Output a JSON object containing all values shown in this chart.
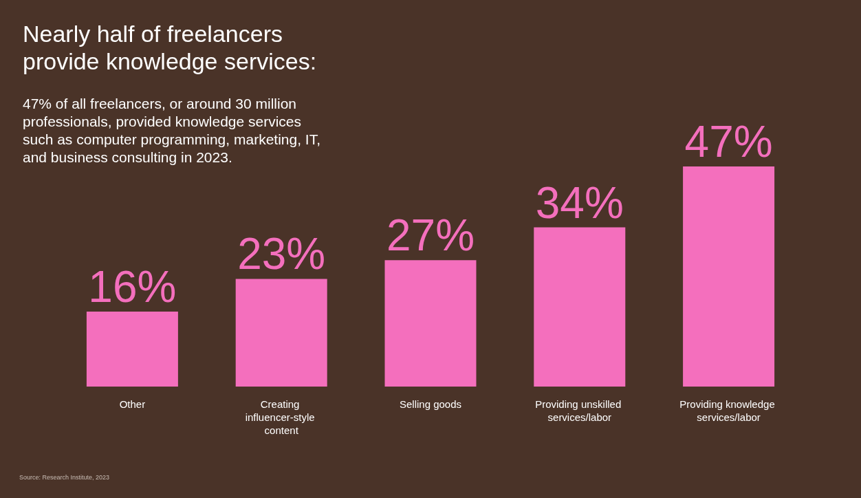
{
  "chart_data": {
    "type": "bar",
    "title": "Nearly half of freelancers provide knowledge services:",
    "subtitle": "47% of all freelancers, or around 30 million professionals, provided knowledge services such as computer programming, marketing, IT, and business consulting in 2023.",
    "categories": [
      "Other",
      "Creating influencer-style content",
      "Selling goods",
      "Providing unskilled services/labor",
      "Providing knowledge services/labor"
    ],
    "values": [
      16,
      23,
      27,
      34,
      47
    ],
    "value_labels": [
      "16%",
      "23%",
      "27%",
      "34%",
      "47%"
    ],
    "color": "#f46fbd",
    "annotations": [
      "Source: Research Institute, 2023"
    ]
  }
}
